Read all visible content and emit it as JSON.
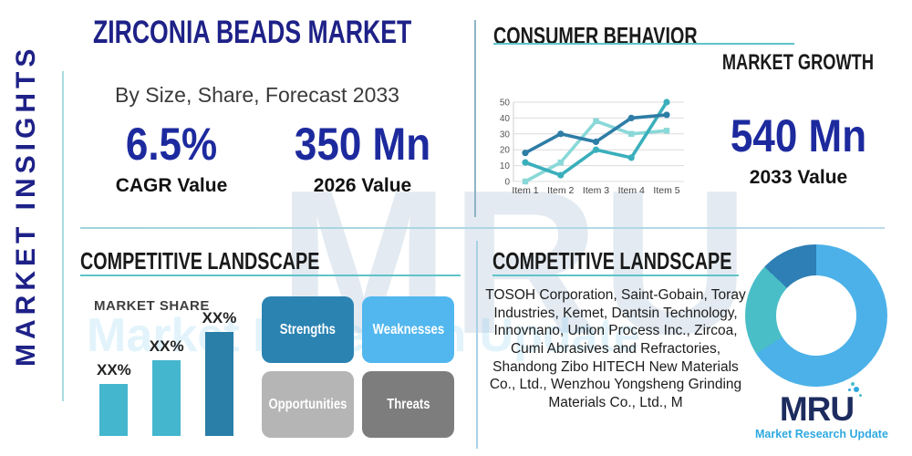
{
  "sidebar": {
    "title": "MARKET INSIGHTS"
  },
  "header": {
    "title": "ZIRCONIA BEADS MARKET",
    "subtitle": "By Size, Share, Forecast 2033"
  },
  "stats": {
    "cagr": {
      "value": "6.5%",
      "label": "CAGR Value"
    },
    "value_2026": {
      "value": "350 Mn",
      "label": "2026 Value"
    },
    "value_2033": {
      "value": "540 Mn",
      "label": "2033 Value"
    }
  },
  "sections": {
    "consumer_behavior": {
      "title": "CONSUMER BEHAVIOR",
      "subtitle": "MARKET GROWTH"
    },
    "competitive_left": {
      "title": "COMPETITIVE LANDSCAPE",
      "market_share_label": "MARKET SHARE"
    },
    "competitive_right": {
      "title": "COMPETITIVE LANDSCAPE",
      "companies": "TOSOH Corporation, Saint-Gobain, Toray Industries, Kemet, Dantsin Technology, Innovnano, Union Process Inc., Zircoa, Cumi Abrasives and Refractories, Shandong Zibo HITECH New Materials Co., Ltd., Wenzhou Yongsheng Grinding Materials Co., Ltd., M"
    }
  },
  "swot": [
    {
      "label": "Strengths",
      "color": "#2b83b2"
    },
    {
      "label": "Weaknesses",
      "color": "#52b7ee"
    },
    {
      "label": "Opportunities",
      "color": "#b5b5b5"
    },
    {
      "label": "Threats",
      "color": "#7d7d7d"
    }
  ],
  "logo": {
    "name": "MRU",
    "tagline": "Market Research Update",
    "navy": "#1d2c5f",
    "blue": "#2fa9e0",
    "teal": "#49bec7"
  },
  "watermark": {
    "text": "MRU",
    "subtext": "Market Research Update"
  },
  "colors": {
    "navy_title": "#1e2187",
    "number_navy": "#1d2a9e",
    "teal_underline": "#5fc3c9",
    "divider_left": "#a8dbe0",
    "divider_center_top": "#8fb3c6",
    "divider_center_bottom": "#a8d2e8"
  },
  "chart_data": [
    {
      "type": "line",
      "title": "MARKET GROWTH",
      "x": [
        "Item 1",
        "Item 2",
        "Item 3",
        "Item 4",
        "Item 5"
      ],
      "series": [
        {
          "name": "series-dark-blue",
          "color": "#2e7da6",
          "marker": "circle",
          "values": [
            18,
            30,
            25,
            40,
            42
          ]
        },
        {
          "name": "series-med-teal",
          "color": "#3aafbc",
          "marker": "circle",
          "values": [
            12,
            4,
            20,
            15,
            50
          ]
        },
        {
          "name": "series-light-teal",
          "color": "#8ad8d8",
          "marker": "square",
          "values": [
            0,
            12,
            38,
            30,
            32
          ]
        }
      ],
      "ylim": [
        0,
        50
      ],
      "yticks": [
        0,
        10,
        20,
        30,
        40,
        50
      ],
      "grid": true,
      "legend": "none"
    },
    {
      "type": "bar",
      "title": "MARKET SHARE",
      "categories": [
        "XX%",
        "XX%",
        "XX%"
      ],
      "values": [
        50,
        73,
        100
      ],
      "value_labels": [
        "XX%",
        "XX%",
        "XX%"
      ],
      "colors": [
        "#44b6ce",
        "#44b6ce",
        "#2a7fa9"
      ],
      "ylim": [
        0,
        100
      ],
      "note": "bar heights estimated from pixels; labels shown are placeholder XX%"
    },
    {
      "type": "pie",
      "donut": true,
      "slices": [
        {
          "label": "segment-light-blue",
          "value": 66,
          "color": "#4cb1e8"
        },
        {
          "label": "segment-teal",
          "value": 21,
          "color": "#49bec7"
        },
        {
          "label": "segment-dark-blue",
          "value": 13,
          "color": "#2e7fb5"
        }
      ]
    }
  ]
}
